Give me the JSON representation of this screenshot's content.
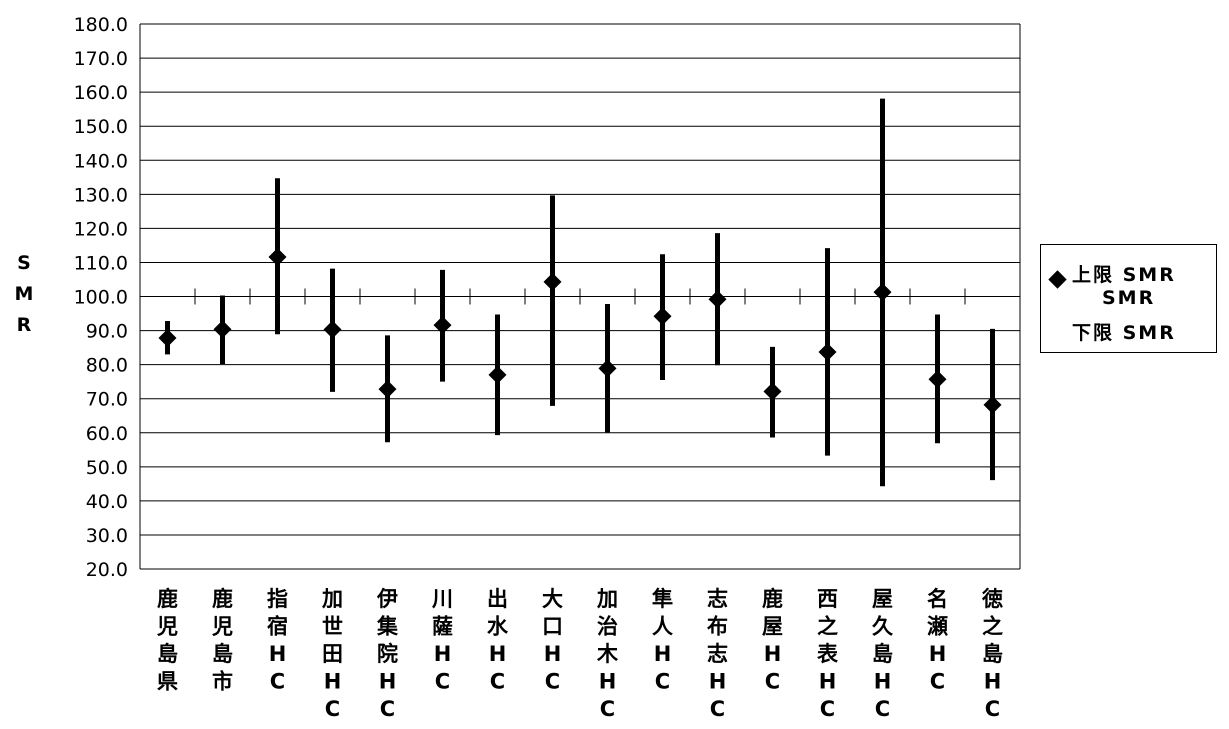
{
  "chart_data": {
    "type": "error-bar",
    "ylabel": "SMR",
    "ylim": [
      20,
      180
    ],
    "yticks": [
      "20.0",
      "30.0",
      "40.0",
      "50.0",
      "60.0",
      "70.0",
      "80.0",
      "90.0",
      "100.0",
      "110.0",
      "120.0",
      "130.0",
      "140.0",
      "150.0",
      "160.0",
      "170.0",
      "180.0"
    ],
    "reference_line": 100,
    "grid": true,
    "legend_position": "right",
    "legend": [
      "上限 SMR",
      "SMR",
      "下限 SMR"
    ],
    "categories": [
      "鹿児島県",
      "鹿児島市",
      "指宿HC",
      "加世田HC",
      "伊集院HC",
      "川薩HC",
      "出水HC",
      "大口HC",
      "加治木HC",
      "隼人HC",
      "志布志HC",
      "鹿屋HC",
      "西之表HC",
      "屋久島HC",
      "名瀬HC",
      "徳之島HC"
    ],
    "series": [
      {
        "name": "上限 SMR",
        "values": [
          92.8,
          100.3,
          134.7,
          108.2,
          88.6,
          107.8,
          94.7,
          129.7,
          97.8,
          112.4,
          118.6,
          85.2,
          114.2,
          158.1,
          94.7,
          90.5
        ]
      },
      {
        "name": "SMR",
        "values": [
          87.8,
          90.4,
          111.6,
          90.3,
          72.8,
          91.6,
          77.0,
          104.3,
          78.9,
          94.2,
          99.2,
          72.1,
          83.7,
          101.3,
          75.7,
          68.2
        ]
      },
      {
        "name": "下限 SMR",
        "values": [
          83.0,
          80.2,
          88.9,
          72.0,
          57.2,
          75.0,
          59.3,
          67.9,
          60.1,
          75.5,
          79.8,
          58.6,
          53.3,
          44.3,
          56.9,
          46.1
        ]
      }
    ]
  }
}
